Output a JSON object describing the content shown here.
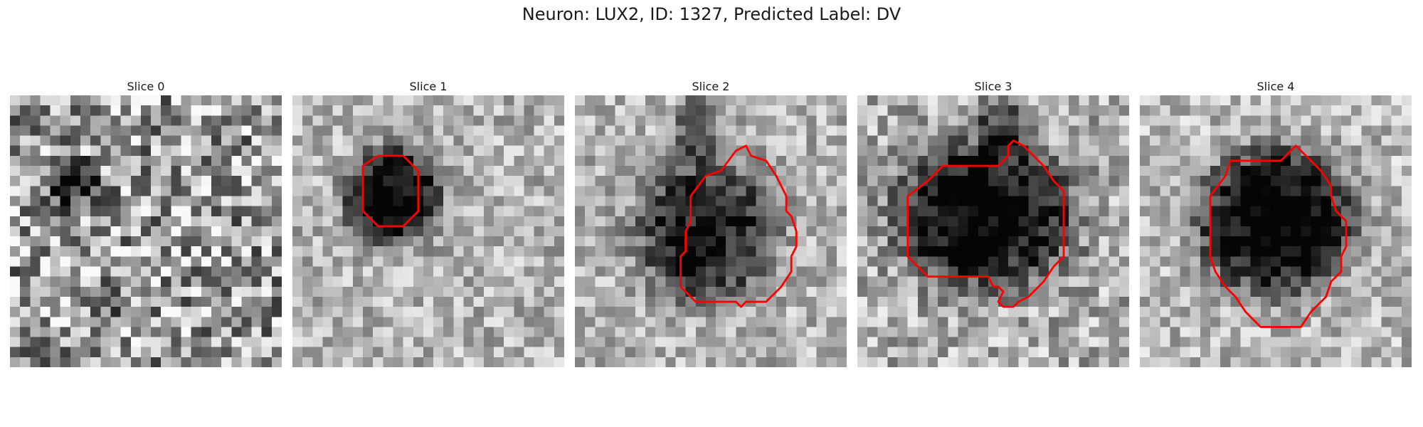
{
  "figure": {
    "title": "Neuron: LUX2, ID: 1327, Predicted Label: DV"
  },
  "panels": [
    {
      "title": "Slice 0"
    },
    {
      "title": "Slice 1"
    },
    {
      "title": "Slice 2"
    },
    {
      "title": "Slice 3"
    },
    {
      "title": "Slice 4"
    }
  ],
  "colors": {
    "contour": "#ff0000",
    "background": "#ffffff"
  },
  "colormap": "grayscale"
}
